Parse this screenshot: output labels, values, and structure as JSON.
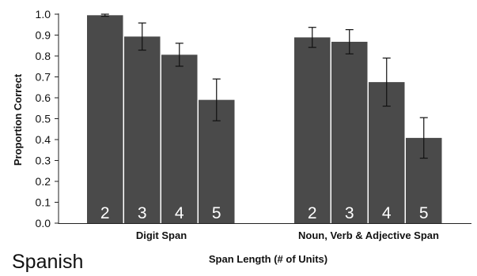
{
  "chart_data": {
    "type": "bar",
    "ylabel": "Proportion Correct",
    "xlabel": "Span Length (# of Units)",
    "ylim": [
      0,
      1
    ],
    "yticks": [
      "0.0",
      "0.1",
      "0.2",
      "0.3",
      "0.4",
      "0.5",
      "0.6",
      "0.7",
      "0.8",
      "0.9",
      "1.0"
    ],
    "grid": false,
    "bar_color": "#4a4a4a",
    "groups": [
      {
        "label": "Digit Span",
        "bars": [
          {
            "label": "2",
            "value": 0.995,
            "error": 0.005
          },
          {
            "label": "3",
            "value": 0.893,
            "error": 0.065
          },
          {
            "label": "4",
            "value": 0.806,
            "error": 0.055
          },
          {
            "label": "5",
            "value": 0.59,
            "error": 0.1
          }
        ]
      },
      {
        "label": "Noun, Verb & Adjective Span",
        "bars": [
          {
            "label": "2",
            "value": 0.889,
            "error": 0.048
          },
          {
            "label": "3",
            "value": 0.868,
            "error": 0.058
          },
          {
            "label": "4",
            "value": 0.675,
            "error": 0.115
          },
          {
            "label": "5",
            "value": 0.408,
            "error": 0.097
          }
        ]
      }
    ]
  },
  "corner_label": "Spanish"
}
